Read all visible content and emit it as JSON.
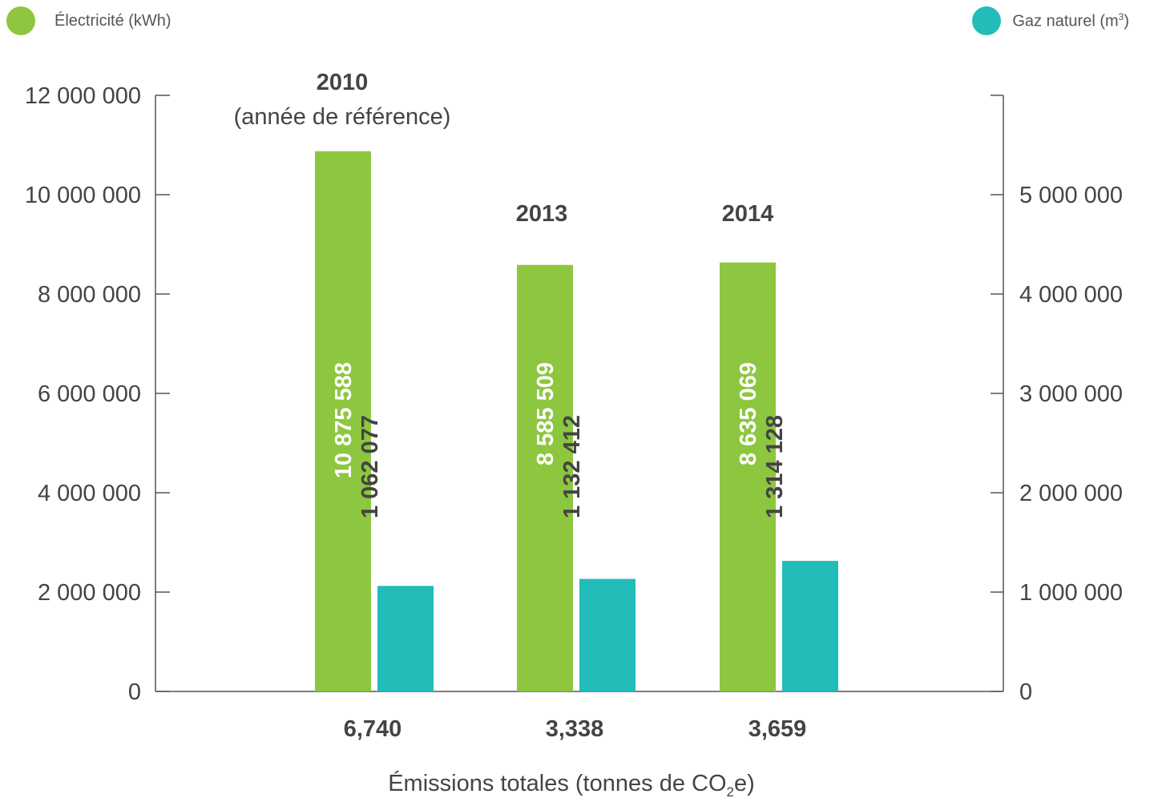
{
  "legend": {
    "electricity_label": "Électricité (kWh)",
    "gas_label_prefix": "Gaz naturel (m",
    "gas_label_sup": "3",
    "gas_label_suffix": ")"
  },
  "colors": {
    "electricity": "#8dc63f",
    "gas": "#22bcb9",
    "axis": "#555555",
    "text": "#444444",
    "bar_label_elec": "#ffffff",
    "bar_label_gas": "#444444"
  },
  "chart_data": {
    "type": "bar",
    "categories": [
      "2010",
      "2013",
      "2014"
    ],
    "category_sublabels": [
      "(année de référence)",
      "",
      ""
    ],
    "series": [
      {
        "name": "Électricité (kWh)",
        "axis": "left",
        "values": [
          10875588,
          8585509,
          8635069
        ],
        "labels": [
          "10 875 588",
          "8 585 509",
          "8 635 069"
        ]
      },
      {
        "name": "Gaz naturel (m3)",
        "axis": "right",
        "values": [
          1062077,
          1132412,
          1314128
        ],
        "labels": [
          "1 062 077",
          "1 132 412",
          "1 314 128"
        ]
      }
    ],
    "left_axis": {
      "ylim": [
        0,
        12000000
      ],
      "ticks": [
        "0",
        "2 000 000",
        "4 000 000",
        "6 000 000",
        "8 000 000",
        "10 000 000",
        "12 000 000"
      ]
    },
    "right_axis": {
      "ylim": [
        0,
        6000000
      ],
      "ticks": [
        "0",
        "1 000 000",
        "2 000 000",
        "3 000 000",
        "4 000 000",
        "5 000 000"
      ]
    },
    "emissions_values": [
      "6,740",
      "3,338",
      "3,659"
    ],
    "xlabel_prefix": "Émissions totales (tonnes de CO",
    "xlabel_sub": "2",
    "xlabel_suffix": "e)"
  }
}
